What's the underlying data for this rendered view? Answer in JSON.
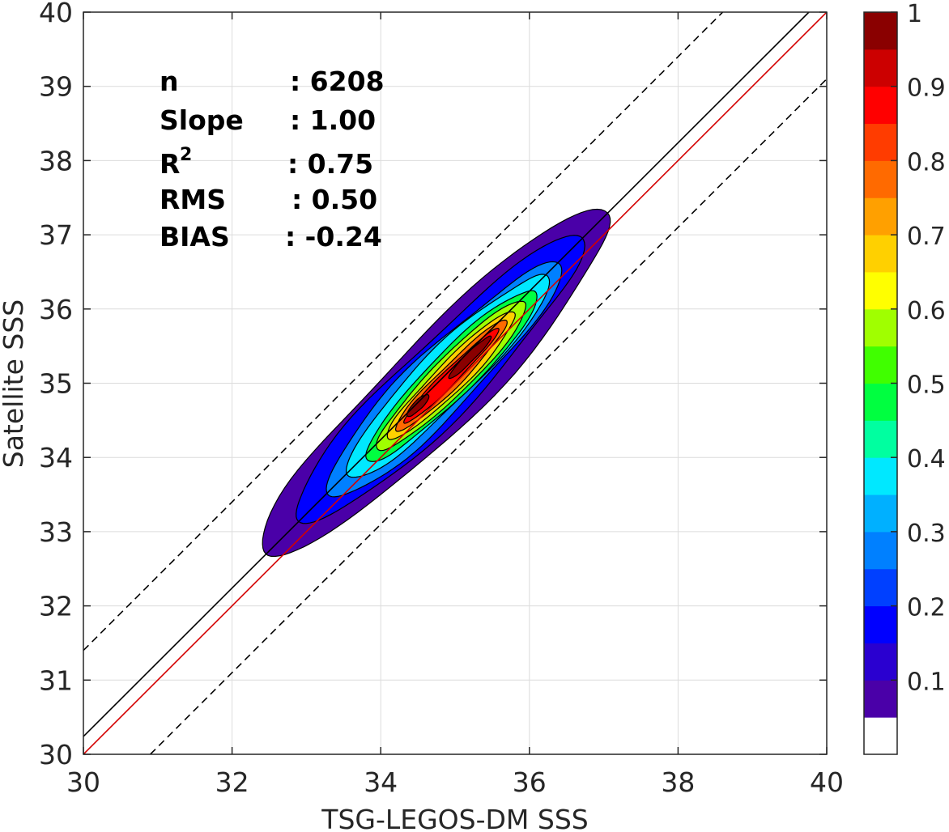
{
  "chart_data": {
    "type": "contour-density",
    "xlabel": "TSG-LEGOS-DM SSS",
    "ylabel": "Satellite SSS",
    "xlim": [
      30,
      40
    ],
    "ylim": [
      30,
      40
    ],
    "xticks": [
      "30",
      "32",
      "34",
      "36",
      "38",
      "40"
    ],
    "yticks": [
      "30",
      "31",
      "32",
      "33",
      "34",
      "35",
      "36",
      "37",
      "38",
      "39",
      "40"
    ],
    "grid": true,
    "stats": [
      {
        "label": "n",
        "value": ": 6208"
      },
      {
        "label": "Slope",
        "value": ": 1.00"
      },
      {
        "label": "R",
        "sup": "2",
        "value": ": 0.75"
      },
      {
        "label": "RMS",
        "value": ": 0.50"
      },
      {
        "label": "BIAS",
        "value": ": -0.24"
      }
    ],
    "lines": [
      {
        "role": "one-to-one",
        "color": "#d40000",
        "style": "solid",
        "points": [
          [
            30,
            30
          ],
          [
            40,
            40
          ]
        ]
      },
      {
        "role": "fit",
        "color": "#000000",
        "style": "solid",
        "points": [
          [
            30,
            30.24
          ],
          [
            39.76,
            40
          ]
        ]
      },
      {
        "role": "upper-band",
        "color": "#000000",
        "style": "dashed",
        "points": [
          [
            30,
            31.4
          ],
          [
            38.6,
            40
          ]
        ]
      },
      {
        "role": "lower-band",
        "color": "#000000",
        "style": "dashed",
        "points": [
          [
            30.9,
            30
          ],
          [
            40,
            39.1
          ]
        ]
      }
    ],
    "density_contours": [
      {
        "level": 0.05,
        "center": [
          34.75,
          35.0
        ],
        "half_along": 3.25,
        "half_across": 0.62
      },
      {
        "level": 0.15,
        "center": [
          34.8,
          35.05
        ],
        "half_along": 2.7,
        "half_across": 0.5
      },
      {
        "level": 0.25,
        "center": [
          34.85,
          35.05
        ],
        "half_along": 2.2,
        "half_across": 0.42
      },
      {
        "level": 0.35,
        "center": [
          34.9,
          35.1
        ],
        "half_along": 1.9,
        "half_across": 0.36
      },
      {
        "level": 0.45,
        "center": [
          34.95,
          35.1
        ],
        "half_along": 1.6,
        "half_across": 0.3
      },
      {
        "level": 0.55,
        "center": [
          34.95,
          35.1
        ],
        "half_along": 1.4,
        "half_across": 0.25
      },
      {
        "level": 0.65,
        "center": [
          34.95,
          35.1
        ],
        "half_along": 1.2,
        "half_across": 0.2
      },
      {
        "level": 0.75,
        "center": [
          34.95,
          35.1
        ],
        "half_along": 1.05,
        "half_across": 0.15
      },
      {
        "level": 0.85,
        "center": [
          34.95,
          35.1
        ],
        "half_along": 0.9,
        "half_across": 0.1
      },
      {
        "level": 0.95,
        "center": [
          35.2,
          35.35
        ],
        "half_along": 0.4,
        "half_across": 0.06
      },
      {
        "level": 0.95,
        "center": [
          34.5,
          34.7
        ],
        "half_along": 0.2,
        "half_across": 0.06
      }
    ],
    "colorbar": {
      "min": 0,
      "max": 1,
      "ticks": [
        "0.1",
        "0.2",
        "0.3",
        "0.4",
        "0.5",
        "0.6",
        "0.7",
        "0.8",
        "0.9",
        "1"
      ],
      "tick_values": [
        0.1,
        0.2,
        0.3,
        0.4,
        0.5,
        0.6,
        0.7,
        0.8,
        0.9,
        1.0
      ],
      "colors": [
        "#ffffff",
        "#4a00a8",
        "#2a00d0",
        "#0000ff",
        "#0040ff",
        "#0080ff",
        "#00b0ff",
        "#00e8ff",
        "#00ffa0",
        "#00ff40",
        "#40ff00",
        "#a0ff00",
        "#ffff00",
        "#ffd000",
        "#ffa000",
        "#ff6a00",
        "#ff3c00",
        "#ff0000",
        "#cc0000",
        "#8a0000"
      ]
    }
  }
}
